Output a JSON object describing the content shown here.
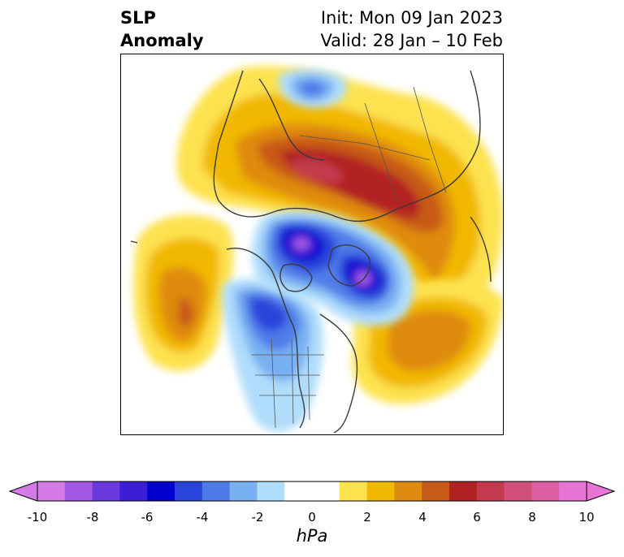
{
  "header": {
    "title_line1": "SLP",
    "title_line2": "Anomaly",
    "init_text": "Init: Mon 09 Jan 2023",
    "valid_text": "Valid: 28 Jan – 10 Feb"
  },
  "map": {
    "variable": "Sea level pressure anomaly",
    "projection": "north polar stereographic"
  },
  "colorbar": {
    "unit_label": "hPa",
    "ticks": [
      "-10",
      "-8",
      "-6",
      "-4",
      "-2",
      "0",
      "2",
      "4",
      "6",
      "8",
      "10"
    ],
    "bins": [
      {
        "from": -10,
        "to": -9,
        "color": "#d57ae9"
      },
      {
        "from": -9,
        "to": -8,
        "color": "#a158e2"
      },
      {
        "from": -8,
        "to": -7,
        "color": "#6a3ade"
      },
      {
        "from": -7,
        "to": -6,
        "color": "#3c1ed6"
      },
      {
        "from": -6,
        "to": -5,
        "color": "#0000cd"
      },
      {
        "from": -5,
        "to": -4,
        "color": "#2b44dc"
      },
      {
        "from": -4,
        "to": -3,
        "color": "#4f7be8"
      },
      {
        "from": -3,
        "to": -2,
        "color": "#79b0f2"
      },
      {
        "from": -2,
        "to": -1,
        "color": "#b0ddfb"
      },
      {
        "from": -1,
        "to": 1,
        "color": "#ffffff"
      },
      {
        "from": 1,
        "to": 2,
        "color": "#fde24f"
      },
      {
        "from": 2,
        "to": 3,
        "color": "#f1b800"
      },
      {
        "from": 3,
        "to": 4,
        "color": "#df8b11"
      },
      {
        "from": 4,
        "to": 5,
        "color": "#c85a18"
      },
      {
        "from": 5,
        "to": 6,
        "color": "#b22222"
      },
      {
        "from": 6,
        "to": 7,
        "color": "#c33a4e"
      },
      {
        "from": 7,
        "to": 8,
        "color": "#d14f7a"
      },
      {
        "from": 8,
        "to": 9,
        "color": "#dd5fa6"
      },
      {
        "from": 9,
        "to": 10,
        "color": "#e874d6"
      }
    ],
    "extend_low_color": "#d57ae9",
    "extend_high_color": "#e874d6"
  }
}
